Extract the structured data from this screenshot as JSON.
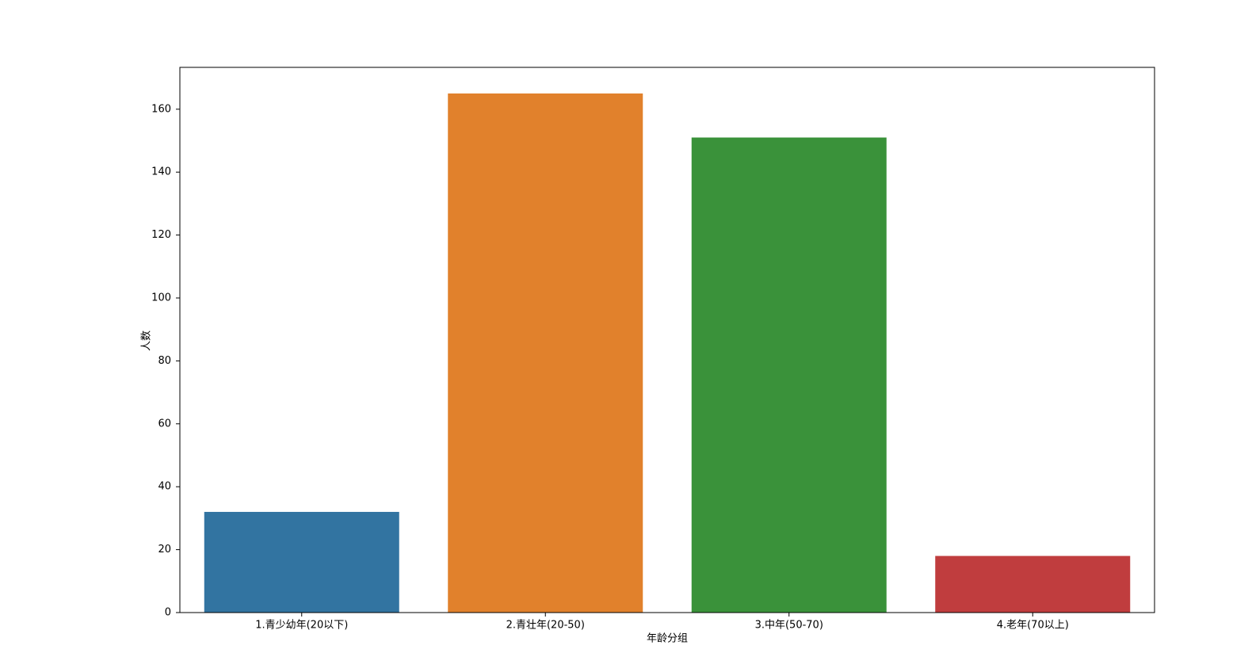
{
  "chart_data": {
    "type": "bar",
    "x_label": "年龄分组",
    "y_label": "人数",
    "categories": [
      "1.青少幼年(20以下)",
      "2.青壮年(20-50)",
      "3.中年(50-70)",
      "4.老年(70以上)"
    ],
    "values": [
      32,
      165,
      151,
      18
    ],
    "colors": [
      "#3274a1",
      "#e1812c",
      "#3a923a",
      "#c03d3e"
    ],
    "ylim": [
      0,
      173.3
    ],
    "yticks": [
      0,
      20,
      40,
      60,
      80,
      100,
      120,
      140,
      160
    ],
    "grid": false
  }
}
